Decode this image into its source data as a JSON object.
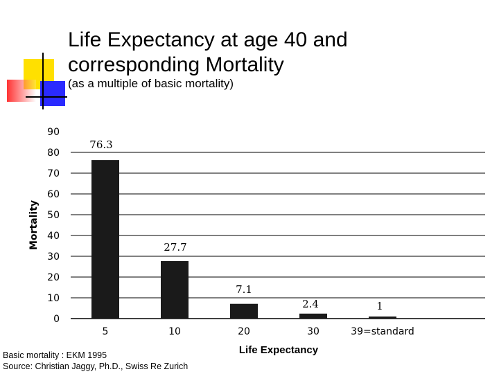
{
  "slide": {
    "title_line1": "Life Expectancy at age 40 and",
    "title_line2": "corresponding Mortality",
    "subtitle": "(as a multiple of basic mortality)",
    "source_line1": "Basic mortality : EKM 1995",
    "source_line2": "Source: Christian Jaggy, Ph.D., Swiss Re Zurich"
  },
  "colors": {
    "bar": "#1a1a1a",
    "gridline": "#000000",
    "deco_yellow": "#ffe000",
    "deco_red": "#ff3333",
    "deco_blue": "#2a2aff"
  },
  "chart_data": {
    "type": "bar",
    "categories": [
      "5",
      "10",
      "20",
      "30",
      "39=standard"
    ],
    "values": [
      76.3,
      27.7,
      7.1,
      2.4,
      1
    ],
    "data_labels": [
      "76.3",
      "27.7",
      "7.1",
      "2.4",
      "1"
    ],
    "xlabel": "Life Expectancy",
    "ylabel": "Mortality",
    "ylim": [
      0,
      90
    ],
    "yticks": [
      0,
      10,
      20,
      30,
      40,
      50,
      60,
      70,
      80,
      90
    ],
    "grid": true,
    "legend": "none"
  }
}
